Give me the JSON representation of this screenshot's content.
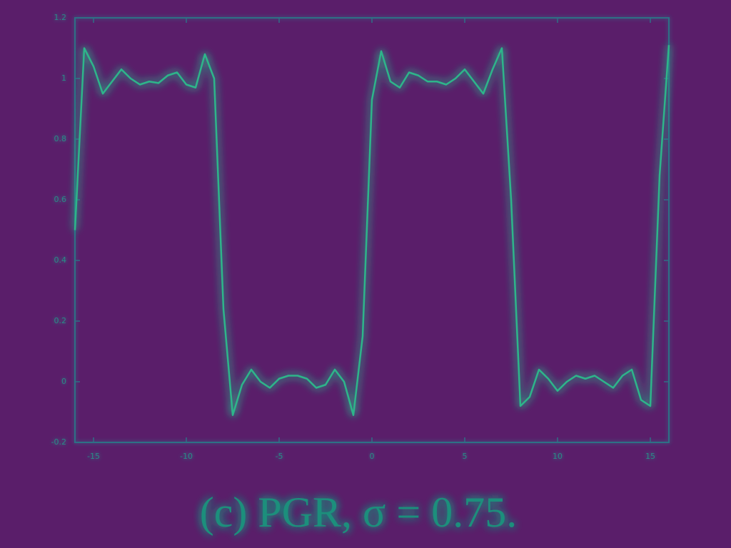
{
  "chart_data": {
    "type": "line",
    "caption": "(c) PGR, σ = 0.75.",
    "x": [
      -16,
      -15.5,
      -15,
      -14.5,
      -14,
      -13.5,
      -13,
      -12.5,
      -12,
      -11.5,
      -11,
      -10.5,
      -10,
      -9.5,
      -9,
      -8.5,
      -8,
      -7.5,
      -7,
      -6.5,
      -6,
      -5.5,
      -5,
      -4.5,
      -4,
      -3.5,
      -3,
      -2.5,
      -2,
      -1.5,
      -1,
      -0.5,
      0,
      0.5,
      1,
      1.5,
      2,
      2.5,
      3,
      3.5,
      4,
      4.5,
      5,
      5.5,
      6,
      6.5,
      7,
      7.5,
      8,
      8.5,
      9,
      9.5,
      10,
      10.5,
      11,
      11.5,
      12,
      12.5,
      13,
      13.5,
      14,
      14.5,
      15,
      15.5,
      16
    ],
    "series": [
      {
        "color": "#2db58a",
        "values": [
          0.5,
          1.1,
          1.04,
          0.95,
          0.99,
          1.03,
          1.0,
          0.98,
          0.99,
          0.985,
          1.01,
          1.02,
          0.98,
          0.97,
          1.08,
          1.0,
          0.24,
          -0.11,
          -0.01,
          0.04,
          0.0,
          -0.02,
          0.01,
          0.02,
          0.02,
          0.01,
          -0.02,
          -0.01,
          0.04,
          0.0,
          -0.11,
          0.15,
          0.93,
          1.09,
          0.99,
          0.97,
          1.02,
          1.01,
          0.99,
          0.99,
          0.98,
          1.0,
          1.03,
          0.99,
          0.95,
          1.03,
          1.1,
          0.6,
          -0.08,
          -0.05,
          0.04,
          0.01,
          -0.03,
          0.0,
          0.02,
          0.01,
          0.02,
          0.0,
          -0.02,
          0.02,
          0.04,
          -0.06,
          -0.08,
          0.68,
          1.11
        ]
      }
    ],
    "xlim": [
      -16,
      16
    ],
    "ylim": [
      -0.2,
      1.2
    ],
    "xticks": [
      -15,
      -10,
      -5,
      0,
      5,
      10,
      15
    ],
    "yticks": [
      -0.2,
      0,
      0.2,
      0.4,
      0.6,
      0.8,
      1,
      1.2
    ]
  }
}
